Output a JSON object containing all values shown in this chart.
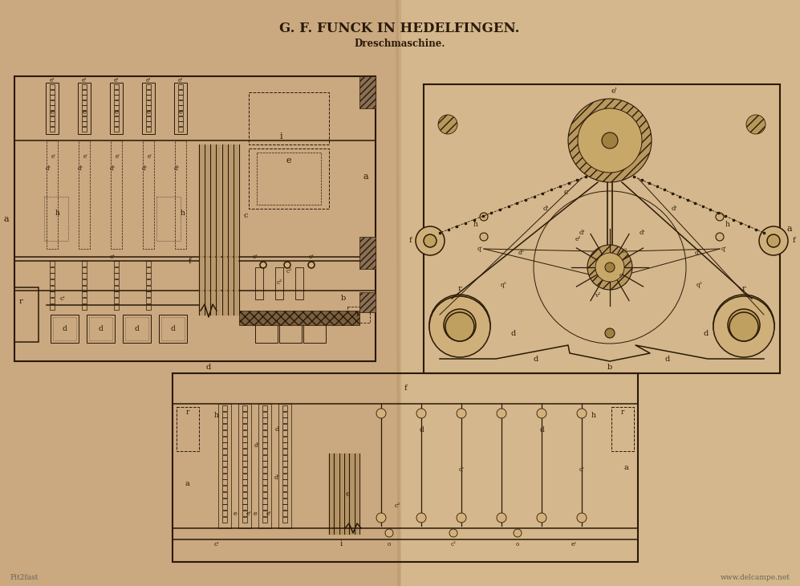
{
  "title1": "G. F. FUNCK IN HEDELFINGEN.",
  "title2": "Dreschmaschine.",
  "bg_left": "#cba882",
  "bg_right": "#d5b98e",
  "line_color": "#2a1a08",
  "watermark_left": "Pit2fast",
  "watermark_right": "www.delcampe.net",
  "fig_width": 9.97,
  "fig_height": 7.3
}
